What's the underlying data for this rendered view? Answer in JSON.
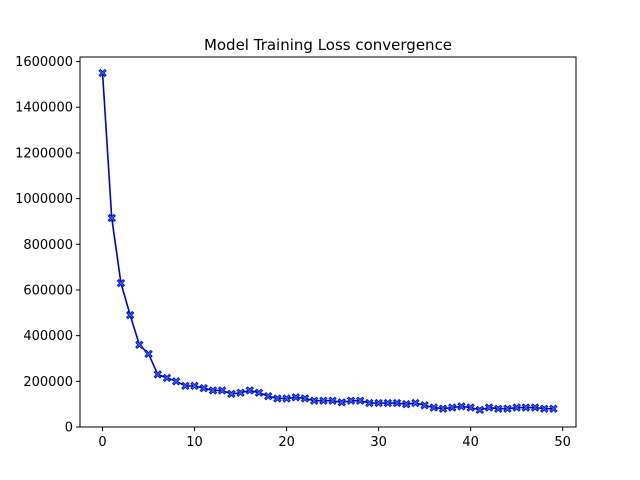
{
  "chart_data": {
    "type": "line",
    "title": "Model Training Loss convergence",
    "xlabel": "",
    "ylabel": "",
    "xlim": [
      -2.45,
      51.45
    ],
    "ylim": [
      0,
      1620000
    ],
    "xticks": [
      0,
      10,
      20,
      30,
      40,
      50
    ],
    "xtick_labels": [
      "0",
      "10",
      "20",
      "30",
      "40",
      "50"
    ],
    "yticks": [
      0,
      200000,
      400000,
      600000,
      800000,
      1000000,
      1200000,
      1400000,
      1600000
    ],
    "ytick_labels": [
      "0",
      "200000",
      "400000",
      "600000",
      "800000",
      "1000000",
      "1200000",
      "1400000",
      "1600000"
    ],
    "grid": false,
    "line_color": "#0000cc",
    "marker_color": "#2a6fdb",
    "marker": "X",
    "series": [
      {
        "x": [
          0,
          1,
          2,
          3,
          4,
          5,
          6,
          7,
          8,
          9,
          10,
          11,
          12,
          13,
          14,
          15,
          16,
          17,
          18,
          19,
          20,
          21,
          22,
          23,
          24,
          25,
          26,
          27,
          28,
          29,
          30,
          31,
          32,
          33,
          34,
          35,
          36,
          37,
          38,
          39,
          40,
          41,
          42,
          43,
          44,
          45,
          46,
          47,
          48,
          49
        ],
        "values": [
          1550000,
          915000,
          630000,
          490000,
          360000,
          320000,
          230000,
          215000,
          200000,
          180000,
          180000,
          170000,
          160000,
          160000,
          145000,
          150000,
          160000,
          150000,
          135000,
          125000,
          125000,
          130000,
          125000,
          115000,
          115000,
          115000,
          108000,
          115000,
          115000,
          105000,
          105000,
          105000,
          105000,
          100000,
          105000,
          95000,
          85000,
          80000,
          85000,
          90000,
          85000,
          75000,
          85000,
          80000,
          80000,
          85000,
          85000,
          85000,
          80000,
          80000
        ]
      }
    ]
  }
}
